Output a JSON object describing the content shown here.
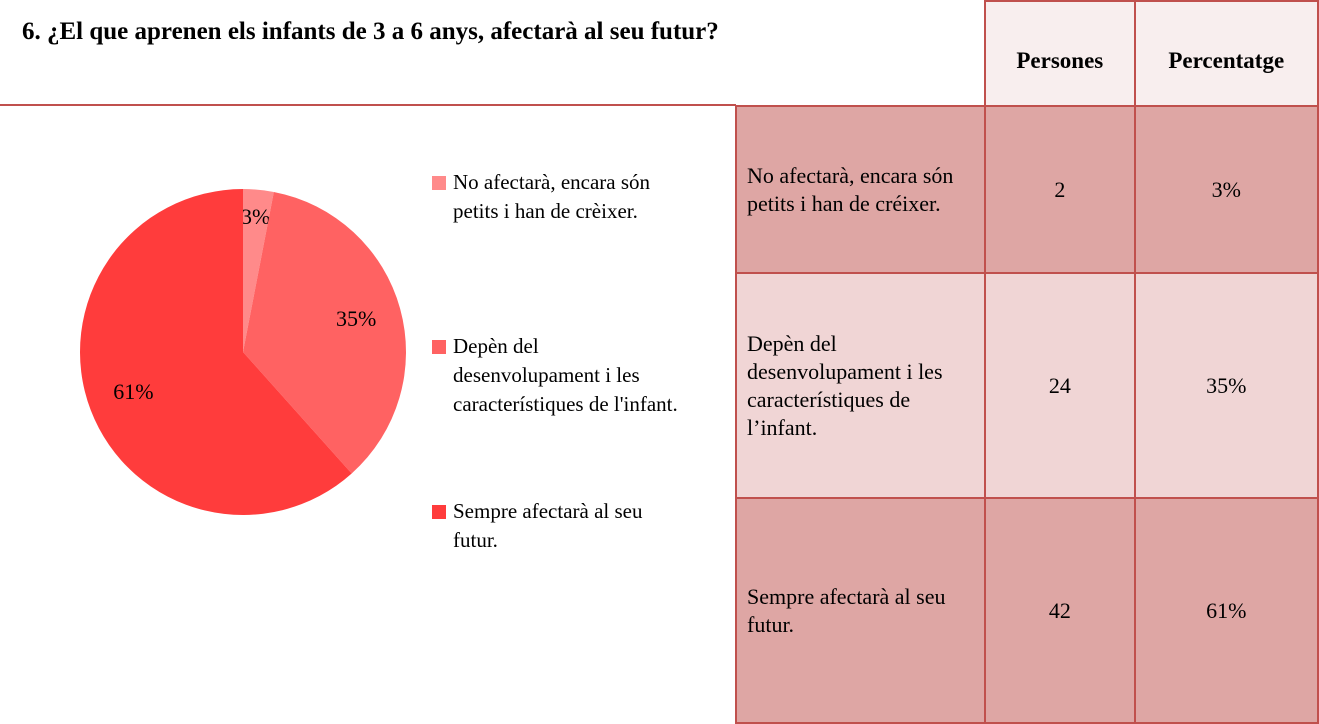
{
  "chart_data": {
    "type": "pie",
    "title": "6. ¿El que aprenen els infants de 3 a 6 anys, afectarà al seu futur?",
    "categories": [
      "No afectarà, encara són petits i han de crèixer.",
      "Depèn del desenvolupament i les característiques de l'infant.",
      "Sempre afectarà al seu futur."
    ],
    "values": [
      3,
      35,
      61
    ],
    "value_labels": [
      "3%",
      "35%",
      "61%"
    ],
    "colors": [
      "#ff8a8a",
      "#ff6262",
      "#ff3c3c"
    ]
  },
  "table": {
    "header": [
      "Persones",
      "Percentatge"
    ],
    "rows": [
      [
        "No afectarà, encara són petits i han de créixer.",
        2,
        "3%"
      ],
      [
        "Depèn del desenvolupament i les característiques de l’infant.",
        24,
        "35%"
      ],
      [
        "Sempre afectarà al seu futur.",
        42,
        "61%"
      ]
    ]
  }
}
